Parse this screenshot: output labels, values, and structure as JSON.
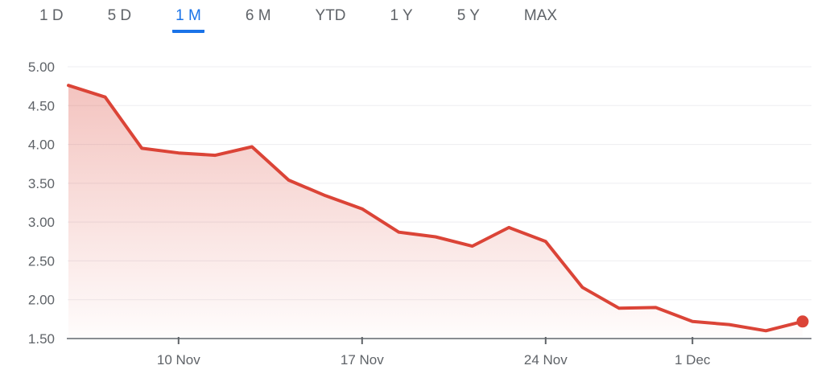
{
  "tabs": {
    "items": [
      {
        "label": "1 D",
        "active": false
      },
      {
        "label": "5 D",
        "active": false
      },
      {
        "label": "1 M",
        "active": true
      },
      {
        "label": "6 M",
        "active": false
      },
      {
        "label": "YTD",
        "active": false
      },
      {
        "label": "1 Y",
        "active": false
      },
      {
        "label": "5 Y",
        "active": false
      },
      {
        "label": "MAX",
        "active": false
      }
    ],
    "active_color": "#1a73e8",
    "inactive_color": "#5f6368"
  },
  "chart_data": {
    "type": "area",
    "series": [
      {
        "name": "price",
        "values": [
          4.76,
          4.61,
          3.95,
          3.89,
          3.86,
          3.97,
          3.54,
          3.34,
          3.17,
          2.87,
          2.81,
          2.69,
          2.93,
          2.75,
          2.16,
          1.89,
          1.9,
          1.72,
          1.68,
          1.6,
          1.72
        ]
      }
    ],
    "x": [
      "5 Nov",
      "6 Nov",
      "7 Nov",
      "10 Nov",
      "11 Nov",
      "12 Nov",
      "13 Nov",
      "14 Nov",
      "17 Nov",
      "18 Nov",
      "19 Nov",
      "20 Nov",
      "21 Nov",
      "24 Nov",
      "25 Nov",
      "26 Nov",
      "28 Nov",
      "1 Dec",
      "2 Dec",
      "3 Dec",
      "4 Dec"
    ],
    "title": "",
    "xlabel": "",
    "ylabel": "",
    "ylim": [
      1.5,
      5.0
    ],
    "yticks": [
      {
        "label": "5.00",
        "value": 5.0
      },
      {
        "label": "4.50",
        "value": 4.5
      },
      {
        "label": "4.00",
        "value": 4.0
      },
      {
        "label": "3.50",
        "value": 3.5
      },
      {
        "label": "3.00",
        "value": 3.0
      },
      {
        "label": "2.50",
        "value": 2.5
      },
      {
        "label": "2.00",
        "value": 2.0
      },
      {
        "label": "1.50",
        "value": 1.5
      }
    ],
    "xticks": [
      {
        "label": "10 Nov",
        "index": 3
      },
      {
        "label": "17 Nov",
        "index": 8
      },
      {
        "label": "24 Nov",
        "index": 13
      },
      {
        "label": "1 Dec",
        "index": 17
      }
    ],
    "grid": true,
    "legend": false,
    "marker": "dot-on-last-point",
    "colors": {
      "line": "#db4437",
      "marker": "#db4437",
      "grid": "#ededf0",
      "axis": "#888c91",
      "tick": "#5f6368",
      "label": "#5f6368"
    }
  }
}
